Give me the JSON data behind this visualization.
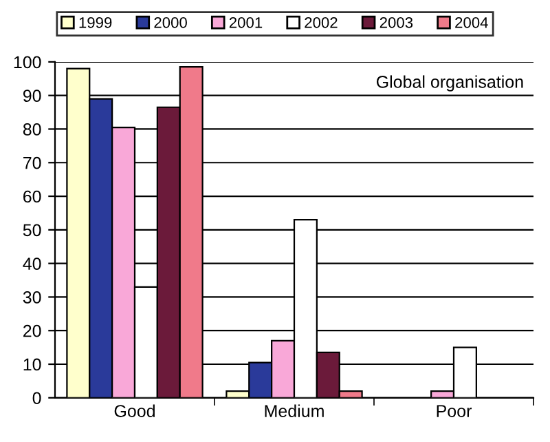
{
  "chart_data": {
    "type": "bar",
    "categories": [
      "Good",
      "Medium",
      "Poor"
    ],
    "series": [
      {
        "name": "1999",
        "color": "#ffffcc",
        "values": [
          98,
          2,
          null
        ]
      },
      {
        "name": "2000",
        "color": "#2a3a9a",
        "values": [
          89,
          10.5,
          null
        ]
      },
      {
        "name": "2001",
        "color": "#f9a8d8",
        "values": [
          80.5,
          17,
          2
        ]
      },
      {
        "name": "2002",
        "color": "#ffffff",
        "values": [
          33,
          53,
          15
        ]
      },
      {
        "name": "2003",
        "color": "#6b1a3a",
        "values": [
          86.5,
          13.5,
          null
        ]
      },
      {
        "name": "2004",
        "color": "#f07a8a",
        "values": [
          98.5,
          2,
          null
        ]
      }
    ],
    "ylim": [
      0,
      100
    ],
    "yticks": [
      0,
      10,
      20,
      30,
      40,
      50,
      60,
      70,
      80,
      90,
      100
    ],
    "grid": "y",
    "legend": "top",
    "annotations": [
      "Global organisation"
    ]
  }
}
